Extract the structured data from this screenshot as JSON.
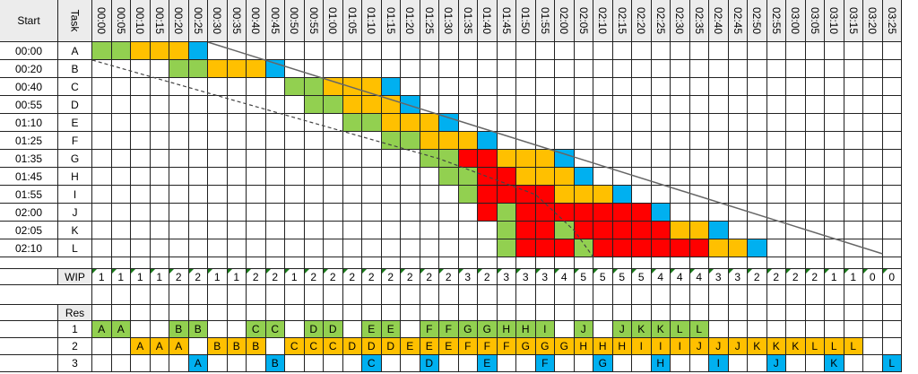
{
  "colors": {
    "green": "#92d050",
    "orange": "#ffc000",
    "blue": "#00b0f0",
    "red": "#ff0000",
    "header": "#ececec",
    "grid": "#222222"
  },
  "header": {
    "start": "Start",
    "task": "Task",
    "wip": "WIP",
    "res": "Res"
  },
  "times": [
    "00:00",
    "00:05",
    "00:10",
    "00:15",
    "00:20",
    "00:25",
    "00:30",
    "00:35",
    "00:40",
    "00:45",
    "00:50",
    "00:55",
    "01:00",
    "01:05",
    "01:10",
    "01:15",
    "01:20",
    "01:25",
    "01:30",
    "01:35",
    "01:40",
    "01:45",
    "01:50",
    "01:55",
    "02:00",
    "02:05",
    "02:10",
    "02:15",
    "02:20",
    "02:25",
    "02:30",
    "02:35",
    "02:40",
    "02:45",
    "02:50",
    "02:55",
    "03:00",
    "03:05",
    "03:10",
    "03:15",
    "03:20",
    "03:25"
  ],
  "tasks": [
    {
      "start": "00:00",
      "task": "A",
      "cells": "GGOOOB"
    },
    {
      "start": "00:20",
      "task": "B",
      "cells": "....GGOOOB"
    },
    {
      "start": "00:40",
      "task": "C",
      "cells": "..........GGOOOB"
    },
    {
      "start": "00:55",
      "task": "D",
      "cells": "...........GGOOOB"
    },
    {
      "start": "01:10",
      "task": "E",
      "cells": ".............GGOOOB"
    },
    {
      "start": "01:25",
      "task": "F",
      "cells": "...............GGOOOB"
    },
    {
      "start": "01:35",
      "task": "G",
      "cells": ".................GGRROOOB"
    },
    {
      "start": "01:45",
      "task": "H",
      "cells": "..................GGRROOOB"
    },
    {
      "start": "01:55",
      "task": "I",
      "cells": "...................GRRRROOOB"
    },
    {
      "start": "02:00",
      "task": "J",
      "cells": "....................RGRRRRRRRB"
    },
    {
      "start": "02:05",
      "task": "K",
      "cells": ".....................GRRGRRRRROOB"
    },
    {
      "start": "02:10",
      "task": "L",
      "cells": ".....................GRRRGRRRRRROOB"
    }
  ],
  "wip": [
    "1",
    "1",
    "1",
    "1",
    "2",
    "2",
    "1",
    "1",
    "2",
    "2",
    "1",
    "2",
    "2",
    "2",
    "2",
    "2",
    "2",
    "2",
    "2",
    "3",
    "2",
    "3",
    "3",
    "3",
    "4",
    "5",
    "5",
    "5",
    "5",
    "4",
    "4",
    "4",
    "3",
    "3",
    "2",
    "2",
    "2",
    "2",
    "1",
    "1",
    "0",
    "0"
  ],
  "res": [
    [
      "A",
      "A",
      "",
      "",
      "B",
      "B",
      "",
      "",
      "C",
      "C",
      "",
      "D",
      "D",
      "",
      "E",
      "E",
      "",
      "F",
      "F",
      "G",
      "G",
      "H",
      "H",
      "I",
      "",
      "J",
      "",
      "J",
      "K",
      "K",
      "L",
      "L",
      "",
      "",
      "",
      "",
      "",
      "",
      "",
      "",
      "",
      ""
    ],
    [
      "",
      "",
      "A",
      "A",
      "A",
      "",
      "B",
      "B",
      "B",
      "",
      "C",
      "C",
      "C",
      "D",
      "D",
      "D",
      "E",
      "E",
      "E",
      "F",
      "F",
      "F",
      "G",
      "G",
      "G",
      "H",
      "H",
      "H",
      "I",
      "I",
      "I",
      "J",
      "J",
      "J",
      "K",
      "K",
      "K",
      "L",
      "L",
      "L",
      "",
      ""
    ],
    [
      "",
      "",
      "",
      "",
      "",
      "A",
      "",
      "",
      "",
      "B",
      "",
      "",
      "",
      "",
      "C",
      "",
      "",
      "D",
      "",
      "",
      "E",
      "",
      "",
      "F",
      "",
      "",
      "G",
      "",
      "",
      "H",
      "",
      "",
      "I",
      "",
      "",
      "J",
      "",
      "",
      "K",
      "",
      "",
      "L"
    ]
  ]
}
